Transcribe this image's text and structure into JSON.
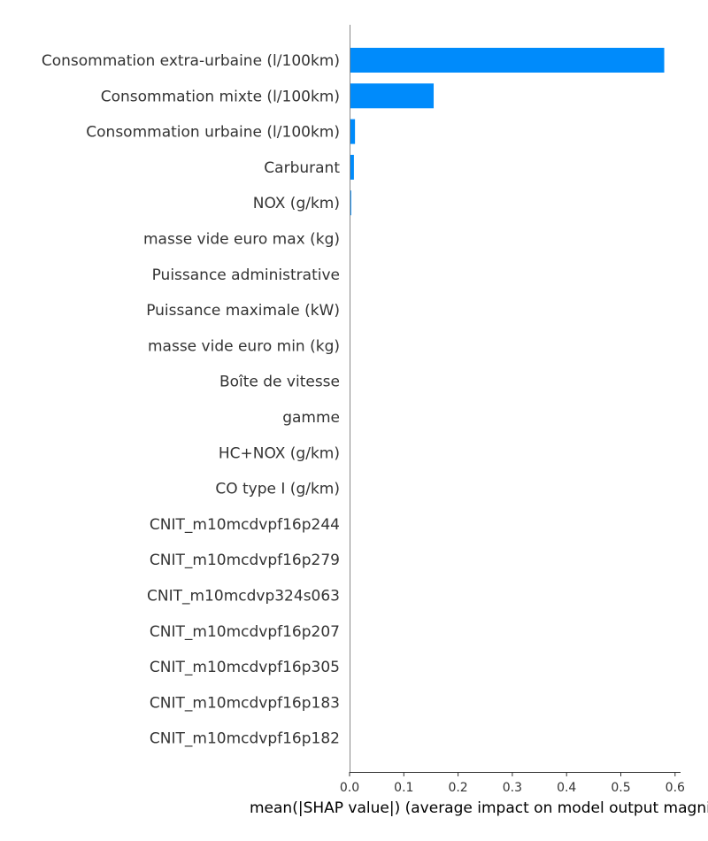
{
  "chart_data": {
    "type": "bar",
    "orientation": "horizontal",
    "categories": [
      "Consommation extra-urbaine (l/100km)",
      "Consommation mixte (l/100km)",
      "Consommation urbaine (l/100km)",
      "Carburant",
      "NOX (g/km)",
      "masse vide euro max (kg)",
      "Puissance administrative",
      "Puissance maximale (kW)",
      "masse vide euro min (kg)",
      "Boîte de vitesse",
      "gamme",
      "HC+NOX (g/km)",
      "CO type I (g/km)",
      "CNIT_m10mcdvpf16p244",
      "CNIT_m10mcdvpf16p279",
      "CNIT_m10mcdvp324s063",
      "CNIT_m10mcdvpf16p207",
      "CNIT_m10mcdvpf16p305",
      "CNIT_m10mcdvpf16p183",
      "CNIT_m10mcdvpf16p182"
    ],
    "values": [
      0.58,
      0.155,
      0.01,
      0.008,
      0.003,
      0.001,
      0.001,
      0,
      0,
      0,
      0,
      0,
      0,
      0,
      0,
      0,
      0,
      0,
      0,
      0
    ],
    "xlabel": "mean(|SHAP value|) (average impact on model output magnitude)",
    "xticks": [
      "0.0",
      "0.1",
      "0.2",
      "0.3",
      "0.4",
      "0.5",
      "0.6"
    ],
    "xlim": [
      0,
      0.605
    ],
    "bar_color": "#008bfb",
    "grid": false
  }
}
